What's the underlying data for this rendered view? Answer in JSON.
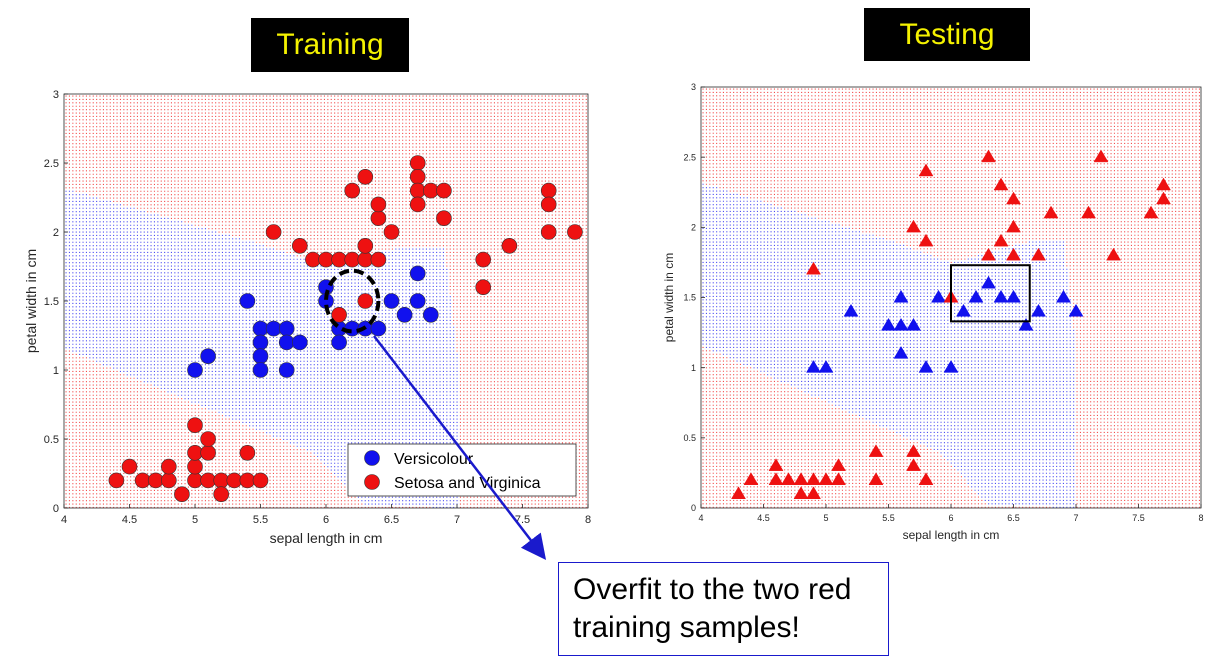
{
  "colors": {
    "red": "#ee1111",
    "blue": "#1111ee",
    "callout_border": "#1a1acc",
    "title_text": "#f5f200"
  },
  "titles": {
    "training": "Training",
    "testing": "Testing"
  },
  "callout": {
    "line1": "Overfit to the two red",
    "line2": "training samples!"
  },
  "chart_data": [
    {
      "type": "scatter",
      "title": "Training",
      "xlabel": "sepal length in cm",
      "ylabel": "petal width in cm",
      "xlim": [
        4,
        8
      ],
      "ylim": [
        0,
        3
      ],
      "xticks": [
        "4",
        "4.5",
        "5",
        "5.5",
        "6",
        "6.5",
        "7",
        "7.5",
        "8"
      ],
      "yticks": [
        "0",
        "0.5",
        "1",
        "1.5",
        "2",
        "2.5",
        "3"
      ],
      "marker": "circle",
      "legend": {
        "position": "lower-right",
        "entries": [
          "Versicolour",
          "Setosa and Virginica"
        ]
      },
      "series": [
        {
          "name": "Versicolour",
          "color": "blue",
          "points": [
            [
              5.0,
              1.0
            ],
            [
              5.1,
              1.1
            ],
            [
              5.4,
              1.5
            ],
            [
              5.5,
              1.3
            ],
            [
              5.5,
              1.2
            ],
            [
              5.5,
              1.1
            ],
            [
              5.5,
              1.0
            ],
            [
              5.6,
              1.3
            ],
            [
              5.7,
              1.3
            ],
            [
              5.7,
              1.2
            ],
            [
              5.7,
              1.0
            ],
            [
              5.8,
              1.2
            ],
            [
              6.0,
              1.6
            ],
            [
              6.0,
              1.5
            ],
            [
              6.1,
              1.3
            ],
            [
              6.1,
              1.2
            ],
            [
              6.2,
              1.3
            ],
            [
              6.3,
              1.3
            ],
            [
              6.4,
              1.3
            ],
            [
              6.5,
              1.5
            ],
            [
              6.6,
              1.4
            ],
            [
              6.7,
              1.7
            ],
            [
              6.7,
              1.5
            ],
            [
              6.8,
              1.4
            ]
          ]
        },
        {
          "name": "Setosa and Virginica",
          "color": "red",
          "points": [
            [
              4.4,
              0.2
            ],
            [
              4.5,
              0.3
            ],
            [
              4.6,
              0.2
            ],
            [
              4.7,
              0.2
            ],
            [
              4.8,
              0.2
            ],
            [
              4.8,
              0.3
            ],
            [
              4.9,
              0.1
            ],
            [
              5.0,
              0.2
            ],
            [
              5.0,
              0.3
            ],
            [
              5.0,
              0.4
            ],
            [
              5.0,
              0.6
            ],
            [
              5.1,
              0.2
            ],
            [
              5.1,
              0.4
            ],
            [
              5.1,
              0.5
            ],
            [
              5.2,
              0.2
            ],
            [
              5.2,
              0.1
            ],
            [
              5.3,
              0.2
            ],
            [
              5.4,
              0.2
            ],
            [
              5.4,
              0.4
            ],
            [
              5.5,
              0.2
            ],
            [
              6.1,
              1.4
            ],
            [
              6.3,
              1.5
            ],
            [
              5.6,
              2.0
            ],
            [
              5.8,
              1.9
            ],
            [
              5.9,
              1.8
            ],
            [
              6.0,
              1.8
            ],
            [
              6.1,
              1.8
            ],
            [
              6.2,
              1.8
            ],
            [
              6.3,
              1.8
            ],
            [
              6.3,
              1.9
            ],
            [
              6.4,
              1.8
            ],
            [
              6.2,
              2.3
            ],
            [
              6.3,
              2.4
            ],
            [
              6.4,
              2.1
            ],
            [
              6.4,
              2.2
            ],
            [
              6.5,
              2.0
            ],
            [
              6.7,
              2.5
            ],
            [
              6.7,
              2.4
            ],
            [
              6.7,
              2.3
            ],
            [
              6.7,
              2.2
            ],
            [
              6.8,
              2.3
            ],
            [
              6.9,
              2.3
            ],
            [
              6.9,
              2.1
            ],
            [
              7.2,
              1.8
            ],
            [
              7.2,
              1.6
            ],
            [
              7.4,
              1.9
            ],
            [
              7.7,
              2.3
            ],
            [
              7.7,
              2.2
            ],
            [
              7.7,
              2.0
            ],
            [
              7.9,
              2.0
            ]
          ]
        }
      ],
      "annotation": {
        "shape": "dashed-circle",
        "center": [
          6.2,
          1.5
        ],
        "radius_x": 0.2,
        "radius_y": 0.22
      }
    },
    {
      "type": "scatter",
      "title": "Testing",
      "xlabel": "sepal length in cm",
      "ylabel": "petal width in cm",
      "xlim": [
        4,
        8
      ],
      "ylim": [
        0,
        3
      ],
      "xticks": [
        "4",
        "4.5",
        "5",
        "5.5",
        "6",
        "6.5",
        "7",
        "7.5",
        "8"
      ],
      "yticks": [
        "0",
        "0.5",
        "1",
        "1.5",
        "2",
        "2.5",
        "3"
      ],
      "marker": "triangle",
      "series": [
        {
          "name": "Versicolour",
          "color": "blue",
          "points": [
            [
              4.9,
              1.0
            ],
            [
              5.0,
              1.0
            ],
            [
              5.2,
              1.4
            ],
            [
              5.5,
              1.3
            ],
            [
              5.6,
              1.3
            ],
            [
              5.6,
              1.1
            ],
            [
              5.6,
              1.5
            ],
            [
              5.7,
              1.3
            ],
            [
              5.8,
              1.0
            ],
            [
              5.9,
              1.5
            ],
            [
              6.0,
              1.0
            ],
            [
              6.1,
              1.4
            ],
            [
              6.2,
              1.5
            ],
            [
              6.3,
              1.6
            ],
            [
              6.4,
              1.5
            ],
            [
              6.5,
              1.5
            ],
            [
              6.6,
              1.3
            ],
            [
              6.7,
              1.4
            ],
            [
              6.9,
              1.5
            ],
            [
              7.0,
              1.4
            ]
          ]
        },
        {
          "name": "Setosa and Virginica",
          "color": "red",
          "points": [
            [
              4.3,
              0.1
            ],
            [
              4.4,
              0.2
            ],
            [
              4.6,
              0.3
            ],
            [
              4.6,
              0.2
            ],
            [
              4.7,
              0.2
            ],
            [
              4.8,
              0.2
            ],
            [
              4.8,
              0.1
            ],
            [
              4.9,
              0.2
            ],
            [
              4.9,
              0.1
            ],
            [
              5.0,
              0.2
            ],
            [
              5.1,
              0.2
            ],
            [
              5.1,
              0.3
            ],
            [
              5.4,
              0.4
            ],
            [
              5.4,
              0.2
            ],
            [
              5.7,
              0.3
            ],
            [
              5.7,
              0.4
            ],
            [
              5.8,
              0.2
            ],
            [
              4.9,
              1.7
            ],
            [
              5.8,
              2.4
            ],
            [
              5.7,
              2.0
            ],
            [
              5.8,
              1.9
            ],
            [
              6.0,
              1.5
            ],
            [
              6.3,
              2.5
            ],
            [
              6.4,
              2.3
            ],
            [
              6.5,
              2.2
            ],
            [
              6.3,
              1.8
            ],
            [
              6.4,
              1.9
            ],
            [
              6.5,
              2.0
            ],
            [
              6.5,
              1.8
            ],
            [
              6.7,
              1.8
            ],
            [
              6.8,
              2.1
            ],
            [
              7.1,
              2.1
            ],
            [
              7.2,
              2.5
            ],
            [
              7.3,
              1.8
            ],
            [
              7.6,
              2.1
            ],
            [
              7.7,
              2.3
            ],
            [
              7.7,
              2.2
            ]
          ]
        }
      ],
      "annotation": {
        "shape": "rectangle",
        "x": [
          6.0,
          6.63
        ],
        "y": [
          1.33,
          1.73
        ]
      }
    }
  ]
}
